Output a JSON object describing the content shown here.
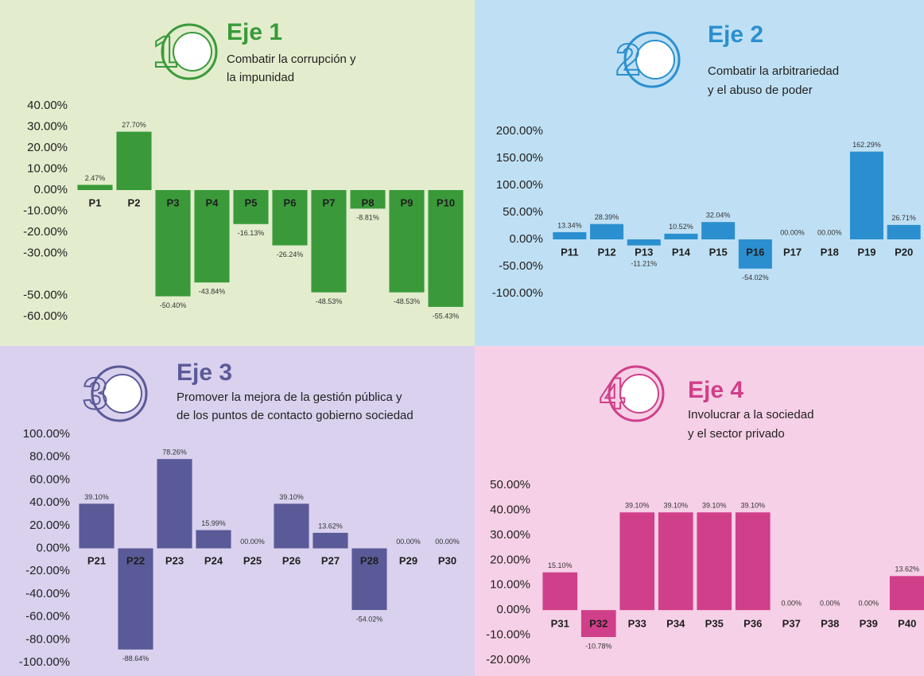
{
  "chart_data": [
    {
      "type": "bar",
      "title": "Eje 1",
      "subtitle": [
        "Combatir la corrupción  y",
        "la impunidad"
      ],
      "badge": "1",
      "background": "#e3edcd",
      "color": "#3a9a3a",
      "categories": [
        "P1",
        "P2",
        "P3",
        "P4",
        "P5",
        "P6",
        "P7",
        "P8",
        "P9",
        "P10"
      ],
      "values": [
        2.47,
        27.7,
        -50.4,
        -43.84,
        -16.13,
        -26.24,
        -48.53,
        -8.81,
        -48.53,
        -55.43
      ],
      "value_labels": [
        "2.47%",
        "27.70%",
        "-50.40%",
        "-43.84%",
        "-16.13%",
        "-26.24%",
        "-48.53%",
        "-8.81%",
        "-48.53%",
        "-55.43%"
      ],
      "ylim": [
        -60,
        40
      ],
      "yticks": [
        {
          "value": 40,
          "label": "40.00%"
        },
        {
          "value": 30,
          "label": "30.00%"
        },
        {
          "value": 20,
          "label": "20.00%"
        },
        {
          "value": 10,
          "label": "10.00%"
        },
        {
          "value": 0,
          "label": "0.00%"
        },
        {
          "value": -10,
          "label": "-10.00%"
        },
        {
          "value": -20,
          "label": "-20.00%"
        },
        {
          "value": -30,
          "label": "-30.00%"
        },
        {
          "value": -50,
          "label": "-50.00%"
        },
        {
          "value": -60,
          "label": "-60.00%"
        }
      ],
      "grid": false
    },
    {
      "type": "bar",
      "title": "Eje 2",
      "subtitle": [
        "Combatir la arbitrariedad",
        "y el abuso de poder"
      ],
      "badge": "2",
      "background": "#bfe0f4",
      "color": "#2b8fcf",
      "categories": [
        "P11",
        "P12",
        "P13",
        "P14",
        "P15",
        "P16",
        "P17",
        "P18",
        "P19",
        "P20"
      ],
      "values": [
        13.34,
        28.39,
        -11.21,
        10.52,
        32.04,
        -54.02,
        0.0,
        0.0,
        162.29,
        26.71
      ],
      "value_labels": [
        "13.34%",
        "28.39%",
        "-11.21%",
        "10.52%",
        "32.04%",
        "-54.02%",
        "00.00%",
        "00.00%",
        "162.29%",
        "26.71%"
      ],
      "ylim": [
        -100,
        200
      ],
      "yticks": [
        {
          "value": 200,
          "label": "200.00%"
        },
        {
          "value": 150,
          "label": "150.00%"
        },
        {
          "value": 100,
          "label": "100.00%"
        },
        {
          "value": 50,
          "label": "50.00%"
        },
        {
          "value": 0,
          "label": "0.00%"
        },
        {
          "value": -50,
          "label": "-50.00%"
        },
        {
          "value": -100,
          "label": "-100.00%"
        }
      ],
      "grid": false
    },
    {
      "type": "bar",
      "title": "Eje 3",
      "subtitle": [
        "Promover la mejora de la gestión pública y",
        "de los puntos de contacto gobierno sociedad"
      ],
      "badge": "3",
      "background": "#d9d1ee",
      "color": "#5a5a98",
      "categories": [
        "P21",
        "P22",
        "P23",
        "P24",
        "P25",
        "P26",
        "P27",
        "P28",
        "P29",
        "P30"
      ],
      "values": [
        39.1,
        -88.64,
        78.26,
        15.99,
        0.0,
        39.1,
        13.62,
        -54.02,
        0.0,
        0.0
      ],
      "value_labels": [
        "39.10%",
        "-88.64%",
        "78.26%",
        "15.99%",
        "00.00%",
        "39.10%",
        "13.62%",
        "-54.02%",
        "00.00%",
        "00.00%"
      ],
      "ylim": [
        -100,
        100
      ],
      "yticks": [
        {
          "value": 100,
          "label": "100.00%"
        },
        {
          "value": 80,
          "label": "80.00%"
        },
        {
          "value": 60,
          "label": "60.00%"
        },
        {
          "value": 40,
          "label": "40.00%"
        },
        {
          "value": 20,
          "label": "20.00%"
        },
        {
          "value": 0,
          "label": "0.00%"
        },
        {
          "value": -20,
          "label": "-20.00%"
        },
        {
          "value": -40,
          "label": "-40.00%"
        },
        {
          "value": -60,
          "label": "-60.00%"
        },
        {
          "value": -80,
          "label": "-80.00%"
        },
        {
          "value": -100,
          "label": "-100.00%"
        }
      ],
      "grid": false
    },
    {
      "type": "bar",
      "title": "Eje 4",
      "subtitle": [
        "Involucrar a la sociedad",
        "y el sector privado"
      ],
      "badge": "4",
      "background": "#f6d0e6",
      "color": "#d03f8a",
      "categories": [
        "P31",
        "P32",
        "P33",
        "P34",
        "P35",
        "P36",
        "P37",
        "P38",
        "P39",
        "P40"
      ],
      "values": [
        15.1,
        -10.78,
        39.1,
        39.1,
        39.1,
        39.1,
        0.0,
        0.0,
        0.0,
        13.62
      ],
      "value_labels": [
        "15.10%",
        "-10.78%",
        "39.10%",
        "39.10%",
        "39.10%",
        "39.10%",
        "0.00%",
        "0.00%",
        "0.00%",
        "13.62%"
      ],
      "ylim": [
        -20,
        50
      ],
      "yticks": [
        {
          "value": 50,
          "label": "50.00%"
        },
        {
          "value": 40,
          "label": "40.00%"
        },
        {
          "value": 30,
          "label": "30.00%"
        },
        {
          "value": 20,
          "label": "20.00%"
        },
        {
          "value": 10,
          "label": "10.00%"
        },
        {
          "value": 0,
          "label": "0.00%"
        },
        {
          "value": -10,
          "label": "-10.00%"
        },
        {
          "value": -20,
          "label": "-20.00%"
        }
      ],
      "grid": false
    }
  ]
}
